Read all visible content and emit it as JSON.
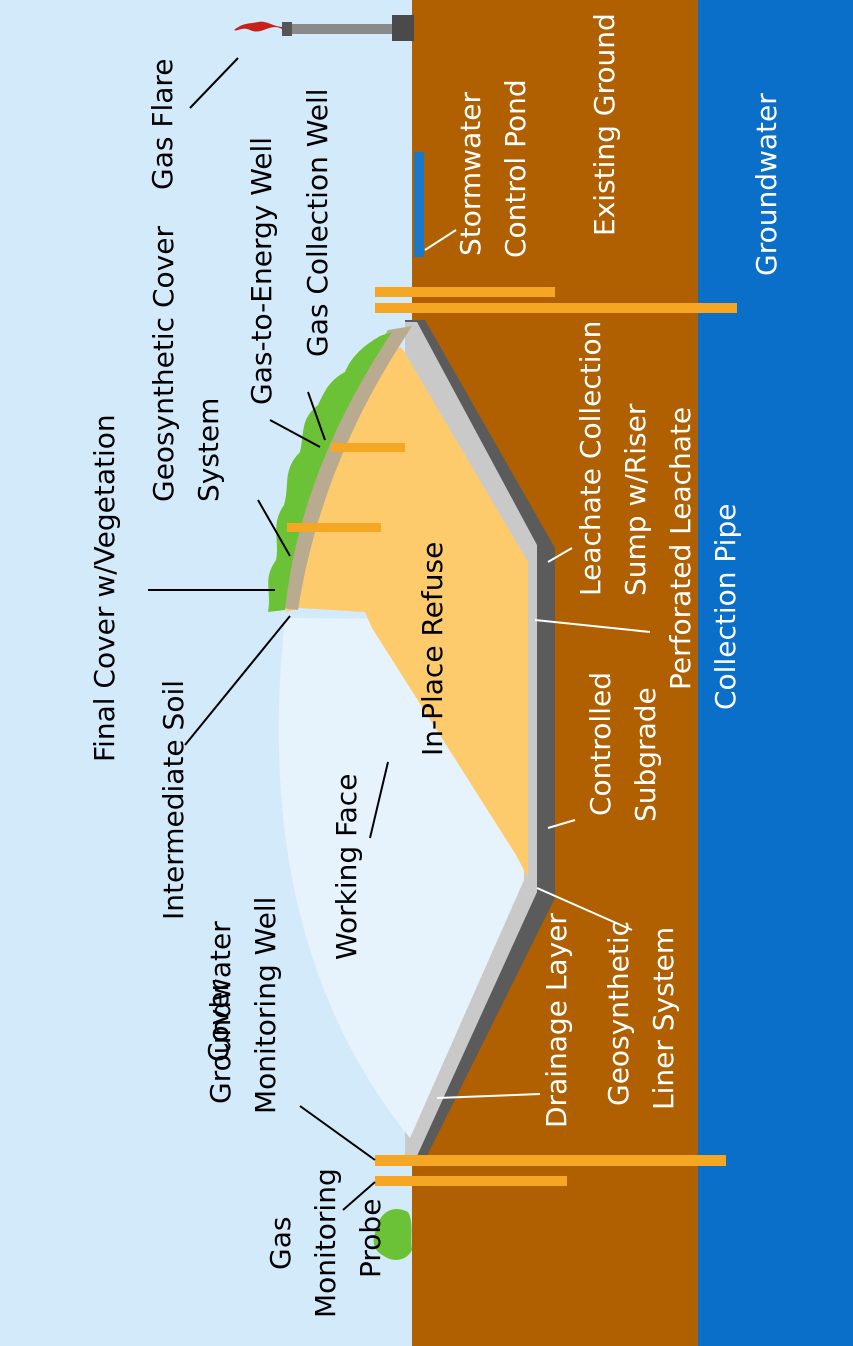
{
  "colors": {
    "sky": "#d3eafb",
    "existing_ground": "#b06000",
    "groundwater": "#0a6fc9",
    "refuse": "#fdcb6c",
    "working_face": "#e6f3fd",
    "liner": "#5b5b5b",
    "drainage": "#c9c9c9",
    "vegetation": "#6cc236",
    "cover_soil": "#b9ab8f",
    "pipe": "#f5a623",
    "stormwater": "#1a78c8"
  },
  "labels": {
    "gas_flare": "Gas Flare",
    "gas_collection_well": "Gas Collection Well",
    "gas_to_energy_well": "Gas-to-Energy Well",
    "geosynthetic_cover": [
      "Geosynthetic Cover",
      "System"
    ],
    "final_cover": "Final Cover w/Vegetation",
    "intermediate_soil_cover": [
      "Intermediate Soil",
      "Cover"
    ],
    "groundwater_monitoring_well": [
      "Groundwater",
      "Monitoring Well"
    ],
    "gas_monitoring_probe": [
      "Gas",
      "Monitoring",
      "Probe"
    ],
    "working_face": "Working Face",
    "in_place_refuse": "In-Place Refuse",
    "stormwater_control_pond": [
      "Stormwater",
      "Control Pond"
    ],
    "existing_ground": "Existing Ground",
    "groundwater": "Groundwater",
    "leachate_collection_sump": [
      "Leachate Collection",
      "Sump w/Riser"
    ],
    "perforated_leachate_pipe": [
      "Perforated Leachate",
      "Collection Pipe"
    ],
    "controlled_subgrade": [
      "Controlled",
      "Subgrade"
    ],
    "drainage_layer": "Drainage Layer",
    "geosynthetic_liner": [
      "Geosynthetic",
      "Liner System"
    ]
  }
}
